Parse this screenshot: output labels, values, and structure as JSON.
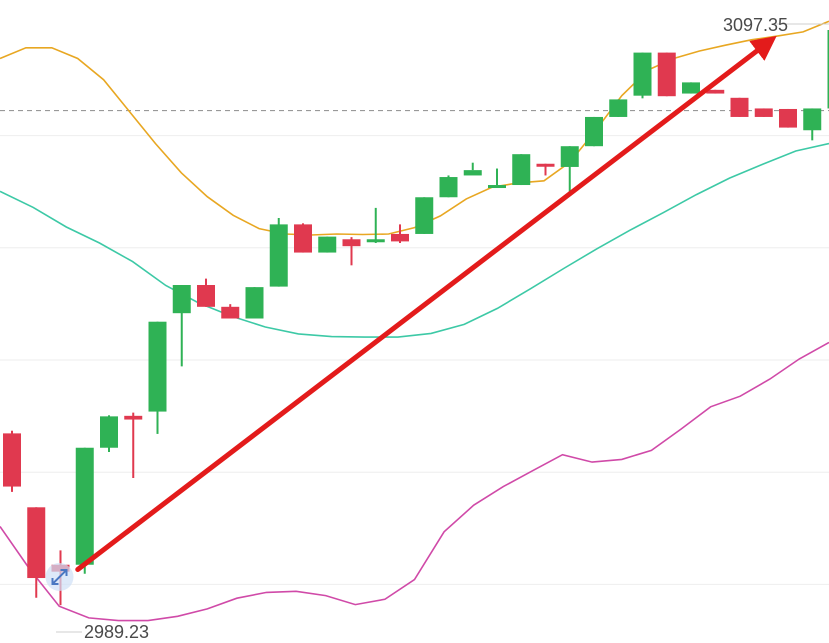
{
  "colors": {
    "up": "#2fb255",
    "down": "#e0394f",
    "ma_upper": "#e8a722",
    "ma_middle": "#3dc9a6",
    "ma_lower": "#d04aa8",
    "arrow": "#e31b1b",
    "grid": "#eeeeee",
    "dashed": "#999999",
    "label": "#4a4a4a"
  },
  "chart_data": {
    "type": "candlestick",
    "title": "",
    "xlabel": "",
    "ylabel": "",
    "ylim": [
      2985,
      3100
    ],
    "grid": true,
    "high_label": "3097.35",
    "low_label": "2989.23",
    "dashed_reference_level": 3082.2,
    "candles": [
      {
        "o": 3021.5,
        "h": 3022.0,
        "c": 3011.5,
        "l": 3010.5
      },
      {
        "o": 3007.6,
        "h": 3007.6,
        "c": 2994.3,
        "l": 2990.6
      },
      {
        "o": 2996.8,
        "h": 2999.5,
        "c": 2995.5,
        "l": 2989.2
      },
      {
        "o": 2996.8,
        "h": 3018.8,
        "c": 3018.8,
        "l": 2995.1
      },
      {
        "o": 3018.8,
        "h": 3024.9,
        "c": 3024.7,
        "l": 3018.0
      },
      {
        "o": 3024.8,
        "h": 3025.4,
        "c": 3024.1,
        "l": 3013.1
      },
      {
        "o": 3025.6,
        "h": 3042.5,
        "c": 3042.5,
        "l": 3021.4
      },
      {
        "o": 3044.1,
        "h": 3049.4,
        "c": 3049.4,
        "l": 3034.1
      },
      {
        "o": 3049.4,
        "h": 3050.6,
        "c": 3045.3,
        "l": 3045.3
      },
      {
        "o": 3045.3,
        "h": 3045.8,
        "c": 3043.1,
        "l": 3043.1
      },
      {
        "o": 3043.1,
        "h": 3049.0,
        "c": 3049.0,
        "l": 3043.1
      },
      {
        "o": 3049.1,
        "h": 3062.0,
        "c": 3060.8,
        "l": 3049.1
      },
      {
        "o": 3060.8,
        "h": 3061.0,
        "c": 3055.5,
        "l": 3055.5
      },
      {
        "o": 3055.5,
        "h": 3058.5,
        "c": 3058.5,
        "l": 3055.5
      },
      {
        "o": 3058.0,
        "h": 3058.4,
        "c": 3056.7,
        "l": 3053.1
      },
      {
        "o": 3058.0,
        "h": 3063.9,
        "c": 3058.0,
        "l": 3057.3
      },
      {
        "o": 3059.0,
        "h": 3060.8,
        "c": 3057.6,
        "l": 3057.3
      },
      {
        "o": 3059.0,
        "h": 3065.9,
        "c": 3065.9,
        "l": 3059.0
      },
      {
        "o": 3065.9,
        "h": 3070.0,
        "c": 3069.7,
        "l": 3065.9
      },
      {
        "o": 3070.0,
        "h": 3072.4,
        "c": 3071.0,
        "l": 3071.0
      },
      {
        "o": 3068.2,
        "h": 3071.3,
        "c": 3068.2,
        "l": 3068.2
      },
      {
        "o": 3068.2,
        "h": 3074.0,
        "c": 3074.0,
        "l": 3068.2
      },
      {
        "o": 3072.2,
        "h": 3072.2,
        "c": 3072.0,
        "l": 3070.0
      },
      {
        "o": 3071.6,
        "h": 3075.5,
        "c": 3075.5,
        "l": 3066.8
      },
      {
        "o": 3075.5,
        "h": 3081.0,
        "c": 3081.0,
        "l": 3075.5
      },
      {
        "o": 3081.0,
        "h": 3084.3,
        "c": 3084.3,
        "l": 3081.0
      },
      {
        "o": 3085.0,
        "h": 3093.1,
        "c": 3093.1,
        "l": 3084.5
      },
      {
        "o": 3093.1,
        "h": 3093.1,
        "c": 3084.9,
        "l": 3084.9
      },
      {
        "o": 3085.4,
        "h": 3087.5,
        "c": 3087.5,
        "l": 3085.4
      },
      {
        "o": 3086.1,
        "h": 3086.1,
        "c": 3085.4,
        "l": 3085.4
      },
      {
        "o": 3084.6,
        "h": 3084.6,
        "c": 3081.0,
        "l": 3081.0
      },
      {
        "o": 3082.6,
        "h": 3082.6,
        "c": 3081.0,
        "l": 3081.0
      },
      {
        "o": 3082.5,
        "h": 3082.5,
        "c": 3079.0,
        "l": 3079.0
      },
      {
        "o": 3078.5,
        "h": 3082.6,
        "c": 3082.6,
        "l": 3076.6
      },
      {
        "o": 3082.6,
        "h": 3097.35,
        "c": 3097.35,
        "l": 3082.6
      }
    ],
    "series": [
      {
        "values": [
          3092.0,
          3094.0,
          3094.0,
          3092.0,
          3088.0,
          3082.0,
          3076.0,
          3070.5,
          3066.0,
          3062.5,
          3060.0,
          3059.0,
          3058.8,
          3059.0,
          3058.9,
          3059.0,
          3060.2,
          3062.4,
          3065.6,
          3067.8,
          3068.6,
          3069.0,
          3072.5,
          3078.5,
          3085.0,
          3089.8,
          3092.0,
          3093.4,
          3094.5,
          3095.5,
          3096.2,
          3097.0,
          3099.0
        ]
      },
      {
        "values": [
          3067.0,
          3064.0,
          3060.3,
          3057.3,
          3053.8,
          3049.3,
          3046.0,
          3043.5,
          3041.5,
          3040.2,
          3039.7,
          3039.6,
          3039.6,
          3040.3,
          3042.0,
          3045.0,
          3048.7,
          3052.5,
          3056.2,
          3059.7,
          3063.0,
          3066.4,
          3069.5,
          3072.1,
          3074.6,
          3076.0
        ]
      },
      {
        "values": [
          3004.0,
          2996.0,
          2989.0,
          2986.8,
          2986.3,
          2986.3,
          2987.1,
          2988.5,
          2990.5,
          2991.6,
          2991.8,
          2991.0,
          2989.3,
          2990.3,
          2994.0,
          3003.0,
          3008.0,
          3011.5,
          3014.5,
          3017.5,
          3016.1,
          3016.6,
          3018.3,
          3022.3,
          3026.5,
          3028.5,
          3031.7,
          3035.5,
          3038.6
        ]
      }
    ],
    "annotation": {
      "type": "arrow",
      "from": {
        "candle": 3,
        "y": 2995.9
      },
      "to": {
        "candle": 31,
        "y": 3095.4
      }
    }
  }
}
